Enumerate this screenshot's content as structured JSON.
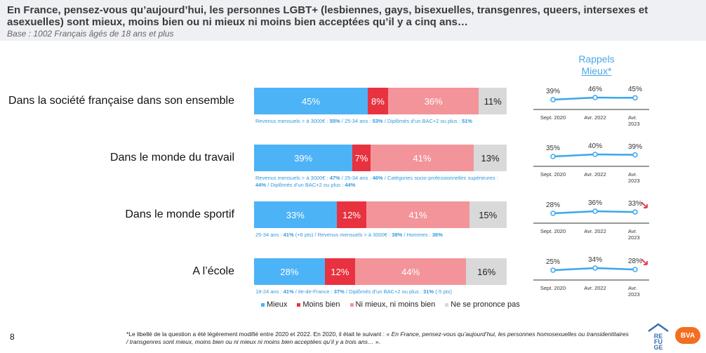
{
  "header": {
    "question": "En France, pensez-vous qu’aujourd’hui, les personnes LGBT+ (lesbiennes, gays, bisexuelles, transgenres, queers, intersexes et asexuelles) sont mieux, moins bien ou ni mieux ni moins bien acceptées qu’il y a cinq ans…",
    "base": "Base : 1002 Français âgés de 18 ans et plus"
  },
  "rappels": {
    "title": "Rappels",
    "subtitle": "Mieux*"
  },
  "colors": {
    "mieux": "#4db3f7",
    "moins_bien": "#e8323f",
    "ni_ni": "#f3949a",
    "nsp": "#d9d9d9",
    "trend_line": "#3ba6ee",
    "down_arrow": "#e8323f"
  },
  "chart_data": {
    "type": "bar",
    "stacked": true,
    "orientation": "horizontal",
    "categories": [
      "Dans la société française dans son ensemble",
      "Dans le monde du travail",
      "Dans le monde sportif",
      "A l’école"
    ],
    "series": [
      {
        "name": "Mieux",
        "values": [
          45,
          39,
          33,
          28
        ]
      },
      {
        "name": "Moins bien",
        "values": [
          8,
          7,
          12,
          12
        ]
      },
      {
        "name": "Ni mieux, ni moins bien",
        "values": [
          36,
          41,
          41,
          44
        ]
      },
      {
        "name": "Ne se prononce pas",
        "values": [
          11,
          13,
          15,
          16
        ]
      }
    ],
    "value_labels": [
      [
        "45%",
        "8%",
        "36%",
        "11%"
      ],
      [
        "39%",
        "7%",
        "41%",
        "13%"
      ],
      [
        "33%",
        "12%",
        "41%",
        "15%"
      ],
      [
        "28%",
        "12%",
        "44%",
        "16%"
      ]
    ],
    "legend_position": "bottom",
    "trends": {
      "title": "Rappels Mieux*",
      "x": [
        "Sept. 2020",
        "Avr. 2022",
        "Avr. 2023"
      ],
      "series": [
        {
          "values": [
            39,
            46,
            45
          ],
          "labels": [
            "39%",
            "46%",
            "45%"
          ],
          "down_arrow": false
        },
        {
          "values": [
            35,
            40,
            39
          ],
          "labels": [
            "35%",
            "40%",
            "39%"
          ],
          "down_arrow": false
        },
        {
          "values": [
            28,
            36,
            33
          ],
          "labels": [
            "28%",
            "36%",
            "33%"
          ],
          "down_arrow": true
        },
        {
          "values": [
            25,
            34,
            28
          ],
          "labels": [
            "25%",
            "34%",
            "28%"
          ],
          "down_arrow": true
        }
      ]
    }
  },
  "notes": [
    [
      {
        "t": "Revenus mensuels > à 3000€ : "
      },
      {
        "t": "55%",
        "b": true
      },
      {
        "t": " / 25-34 ans : "
      },
      {
        "t": "53%",
        "b": true
      },
      {
        "t": " / Diplômés d’un BAC+2 ou plus : "
      },
      {
        "t": "51%",
        "b": true
      }
    ],
    [
      {
        "t": "Revenus mensuels > à 3000€ : "
      },
      {
        "t": "47%",
        "b": true
      },
      {
        "t": " / 25-34 ans : "
      },
      {
        "t": "46%",
        "b": true
      },
      {
        "t": " / Catégories socio-professionnelles supérieures : "
      },
      {
        "t": "44%",
        "b": true
      },
      {
        "t": " / Diplômés d’un BAC+2 ou plus : "
      },
      {
        "t": "44%",
        "b": true
      }
    ],
    [
      {
        "t": "25-34 ans : "
      },
      {
        "t": "41%",
        "b": true
      },
      {
        "t": " (+6 pts) / Revenus mensuels > à 3000€ : "
      },
      {
        "t": "38%",
        "b": true
      },
      {
        "t": " / Hommes : "
      },
      {
        "t": "36%",
        "b": true
      }
    ],
    [
      {
        "t": "18-24 ans : "
      },
      {
        "t": "41%",
        "b": true
      },
      {
        "t": " / Ile-de-France : "
      },
      {
        "t": "37%",
        "b": true
      },
      {
        "t": " / Diplômés d’un BAC+2 ou plus : "
      },
      {
        "t": "31%",
        "b": true
      },
      {
        "t": " (-5 pts)"
      }
    ]
  ],
  "footer": {
    "page_number": "8",
    "footnote_prefix": "*Le libellé de la question a été légèrement modifié entre 2020 et 2022. En 2020, il était le suivant : « ",
    "footnote_italic": "En France, pensez-vous qu’aujourd’hui, les personnes homosexuelles ou transidentitaires / transgenres sont mieux, moins bien ou ni mieux ni moins bien acceptées qu’il y a trois ans…",
    "footnote_suffix": " ».",
    "logo_refuge": "REFUGE",
    "logo_bva": "BVA"
  }
}
